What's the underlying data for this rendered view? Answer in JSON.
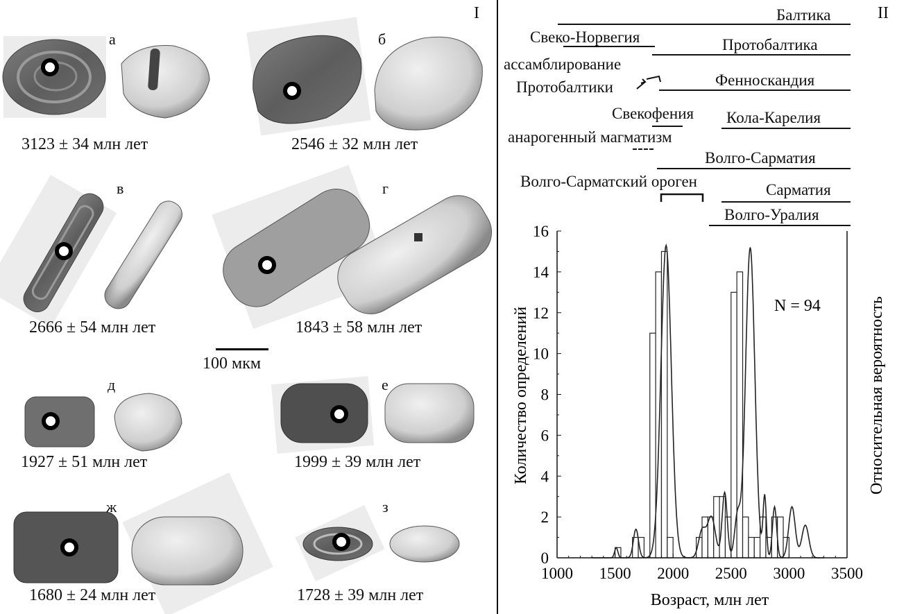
{
  "panel_left": {
    "label": "I",
    "scale_label": "100 мкм",
    "grains": [
      {
        "letter": "а",
        "age": "3123 ± 34 млн лет"
      },
      {
        "letter": "б",
        "age": "2546 ± 32 млн лет"
      },
      {
        "letter": "в",
        "age": "2666 ± 54 млн лет"
      },
      {
        "letter": "г",
        "age": "1843 ± 58 млн лет"
      },
      {
        "letter": "д",
        "age": "1927 ± 51 млн лет"
      },
      {
        "letter": "е",
        "age": "1999 ± 39 млн лет"
      },
      {
        "letter": "ж",
        "age": "1680 ± 24 млн лет"
      },
      {
        "letter": "з",
        "age": "1728 ± 39 млн лет"
      }
    ]
  },
  "panel_right": {
    "label": "II",
    "timeline": {
      "baltika": "Балтика",
      "sveko_norvegia": "Свеко-Норвегия",
      "protobaltika": "Протобалтика",
      "assembly_1": "ассамблирование",
      "assembly_2": "Протобалтики",
      "fennoskandia": "Фенноскандия",
      "svekofenia": "Свекофения",
      "kola_karelia": "Кола-Карелия",
      "anorogenic": "анарогенный магматизм",
      "volgo_sarmatia": "Волго-Сарматия",
      "volgo_sarmat_orogen": "Волго-Сарматский ороген",
      "sarmatia": "Сарматия",
      "volgo_uralia": "Волго-Уралия"
    }
  },
  "chart_data": {
    "type": "bar",
    "xlabel": "Возраст, млн лет",
    "ylabel": "Количество определений",
    "y2label": "Относительная вероятность",
    "annotation": "N = 94",
    "xlim": [
      1000,
      3500
    ],
    "ylim": [
      0,
      16
    ],
    "xticks": [
      1000,
      1500,
      2000,
      2500,
      3000,
      3500
    ],
    "yticks": [
      0,
      2,
      4,
      6,
      8,
      10,
      12,
      14,
      16
    ],
    "bin_width": 50,
    "bins": [
      {
        "x": 1500,
        "count": 0.5
      },
      {
        "x": 1650,
        "count": 1
      },
      {
        "x": 1700,
        "count": 1
      },
      {
        "x": 1800,
        "count": 11
      },
      {
        "x": 1850,
        "count": 14
      },
      {
        "x": 1900,
        "count": 15
      },
      {
        "x": 1950,
        "count": 1
      },
      {
        "x": 2200,
        "count": 1
      },
      {
        "x": 2250,
        "count": 2
      },
      {
        "x": 2300,
        "count": 2
      },
      {
        "x": 2350,
        "count": 3
      },
      {
        "x": 2400,
        "count": 3
      },
      {
        "x": 2450,
        "count": 2
      },
      {
        "x": 2500,
        "count": 13
      },
      {
        "x": 2550,
        "count": 14
      },
      {
        "x": 2600,
        "count": 2
      },
      {
        "x": 2650,
        "count": 1
      },
      {
        "x": 2700,
        "count": 1
      },
      {
        "x": 2750,
        "count": 2
      },
      {
        "x": 2800,
        "count": 1
      },
      {
        "x": 2850,
        "count": 2
      },
      {
        "x": 2900,
        "count": 2
      },
      {
        "x": 2950,
        "count": 1
      }
    ],
    "density_peaks": [
      {
        "mu": 1510,
        "sigma": 14,
        "peak": 0.5
      },
      {
        "mu": 1680,
        "sigma": 22,
        "peak": 1.4
      },
      {
        "mu": 1940,
        "sigma": 45,
        "peak": 15.3
      },
      {
        "mu": 2250,
        "sigma": 30,
        "peak": 1.3
      },
      {
        "mu": 2330,
        "sigma": 35,
        "peak": 2.0
      },
      {
        "mu": 2445,
        "sigma": 22,
        "peak": 3.2
      },
      {
        "mu": 2555,
        "sigma": 25,
        "peak": 2.0
      },
      {
        "mu": 2665,
        "sigma": 40,
        "peak": 15.2
      },
      {
        "mu": 2790,
        "sigma": 14,
        "peak": 3.0
      },
      {
        "mu": 2875,
        "sigma": 18,
        "peak": 2.5
      },
      {
        "mu": 3025,
        "sigma": 28,
        "peak": 2.5
      },
      {
        "mu": 3140,
        "sigma": 30,
        "peak": 1.6
      }
    ]
  }
}
